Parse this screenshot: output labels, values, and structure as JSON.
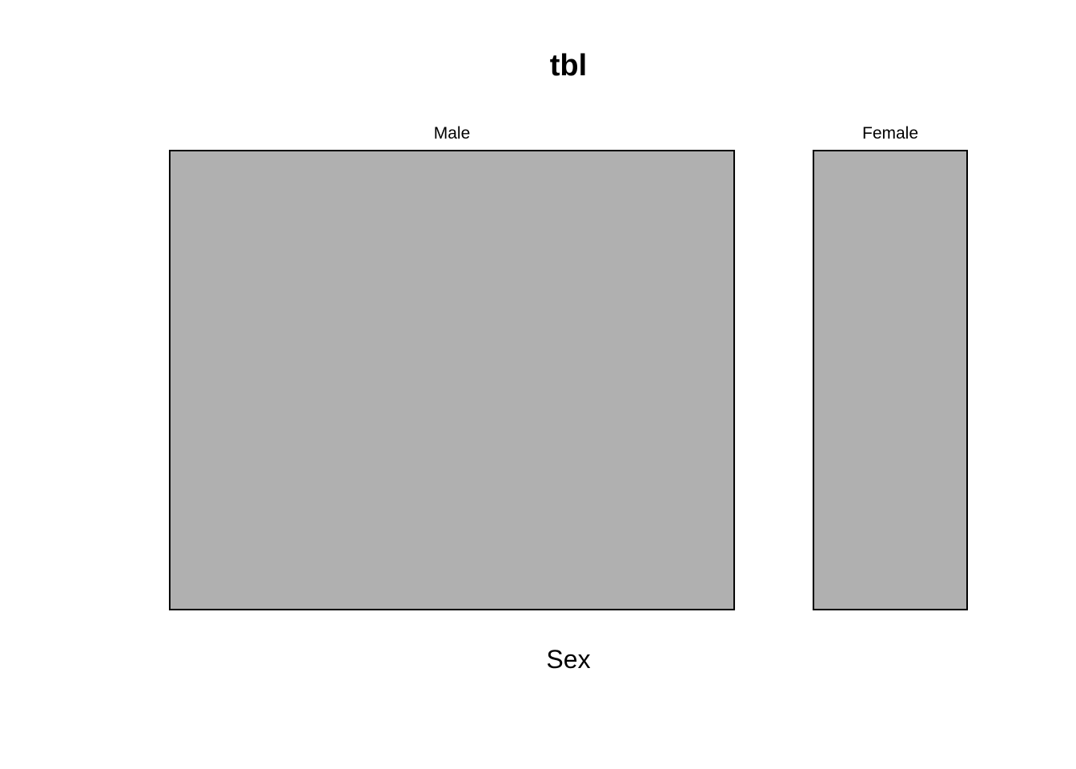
{
  "chart_data": {
    "type": "mosaic",
    "title": "tbl",
    "xlabel": "Sex",
    "ylabel": "",
    "categories": [
      "Male",
      "Female"
    ],
    "values": [
      0.786,
      0.214
    ],
    "fill_color": "#b0b0b0",
    "border_color": "#000000"
  }
}
